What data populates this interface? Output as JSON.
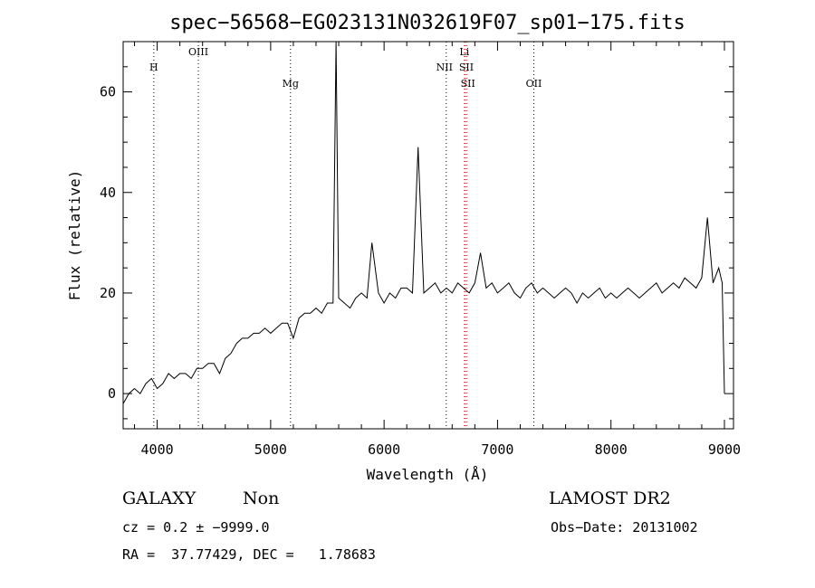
{
  "chart_data": {
    "type": "line",
    "title": "spec−56568−EG023131N032619F07_sp01−175.fits",
    "xlabel": "Wavelength (Å)",
    "ylabel": "Flux (relative)",
    "xlim": [
      3700,
      9080
    ],
    "ylim": [
      -7,
      70
    ],
    "x_ticks": [
      4000,
      5000,
      6000,
      7000,
      8000,
      9000
    ],
    "x_tick_labels": [
      "4000",
      "5000",
      "6000",
      "7000",
      "8000",
      "9000"
    ],
    "y_ticks": [
      0,
      20,
      40,
      60
    ],
    "y_tick_labels": [
      "0",
      "20",
      "40",
      "60"
    ],
    "grid": false,
    "series": [
      {
        "color": "#000000",
        "x": [
          3700,
          3750,
          3800,
          3850,
          3900,
          3950,
          4000,
          4050,
          4100,
          4150,
          4200,
          4250,
          4300,
          4350,
          4400,
          4450,
          4500,
          4550,
          4600,
          4650,
          4700,
          4750,
          4800,
          4850,
          4900,
          4950,
          5000,
          5050,
          5100,
          5150,
          5200,
          5250,
          5300,
          5350,
          5400,
          5450,
          5500,
          5550,
          5577,
          5600,
          5650,
          5700,
          5750,
          5800,
          5850,
          5893,
          5950,
          6000,
          6050,
          6100,
          6150,
          6200,
          6250,
          6300,
          6350,
          6400,
          6450,
          6500,
          6550,
          6600,
          6650,
          6700,
          6750,
          6800,
          6850,
          6900,
          6950,
          7000,
          7050,
          7100,
          7150,
          7200,
          7250,
          7300,
          7350,
          7400,
          7450,
          7500,
          7550,
          7600,
          7650,
          7700,
          7750,
          7800,
          7850,
          7900,
          7950,
          8000,
          8050,
          8100,
          8150,
          8200,
          8250,
          8300,
          8350,
          8400,
          8450,
          8500,
          8550,
          8600,
          8650,
          8700,
          8750,
          8800,
          8850,
          8900,
          8950,
          8980,
          9000
        ],
        "y": [
          -2,
          0,
          1,
          0,
          2,
          3,
          1,
          2,
          4,
          3,
          4,
          4,
          3,
          5,
          5,
          6,
          6,
          4,
          7,
          8,
          10,
          11,
          11,
          12,
          12,
          13,
          12,
          13,
          14,
          14,
          11,
          15,
          16,
          16,
          17,
          16,
          18,
          18,
          70,
          19,
          18,
          17,
          19,
          20,
          19,
          30,
          20,
          18,
          20,
          19,
          21,
          21,
          20,
          49,
          20,
          21,
          22,
          20,
          21,
          20,
          22,
          21,
          20,
          22,
          28,
          21,
          22,
          20,
          21,
          22,
          20,
          19,
          21,
          22,
          20,
          21,
          20,
          19,
          20,
          21,
          20,
          18,
          20,
          19,
          20,
          21,
          19,
          20,
          19,
          20,
          21,
          20,
          19,
          20,
          21,
          22,
          20,
          21,
          22,
          21,
          23,
          22,
          21,
          23,
          35,
          22,
          25,
          22,
          0
        ]
      }
    ],
    "lines": [
      {
        "label": "H",
        "x": 3970,
        "color": "#000000"
      },
      {
        "label": "OIII",
        "x": 4363,
        "color": "#000000"
      },
      {
        "label": "Mg",
        "x": 5175,
        "color": "#000000"
      },
      {
        "label": "NII",
        "x": 6548,
        "color": "#000000"
      },
      {
        "label": "Li",
        "x": 6708,
        "color": "#ff0000"
      },
      {
        "label": "SII",
        "x": 6717,
        "color": "#ff0000"
      },
      {
        "label": "SII",
        "x": 6731,
        "color": "#ff0000"
      },
      {
        "label": "OII",
        "x": 7320,
        "color": "#000000"
      }
    ]
  },
  "info": {
    "class_label": "GALAXY",
    "subclass": "Non",
    "survey": "LAMOST DR2",
    "redshift": "cz = 0.2 ± −9999.0",
    "obs_date": "Obs−Date: 20131002",
    "coords": "RA =  37.77429, DEC =   1.78683"
  }
}
